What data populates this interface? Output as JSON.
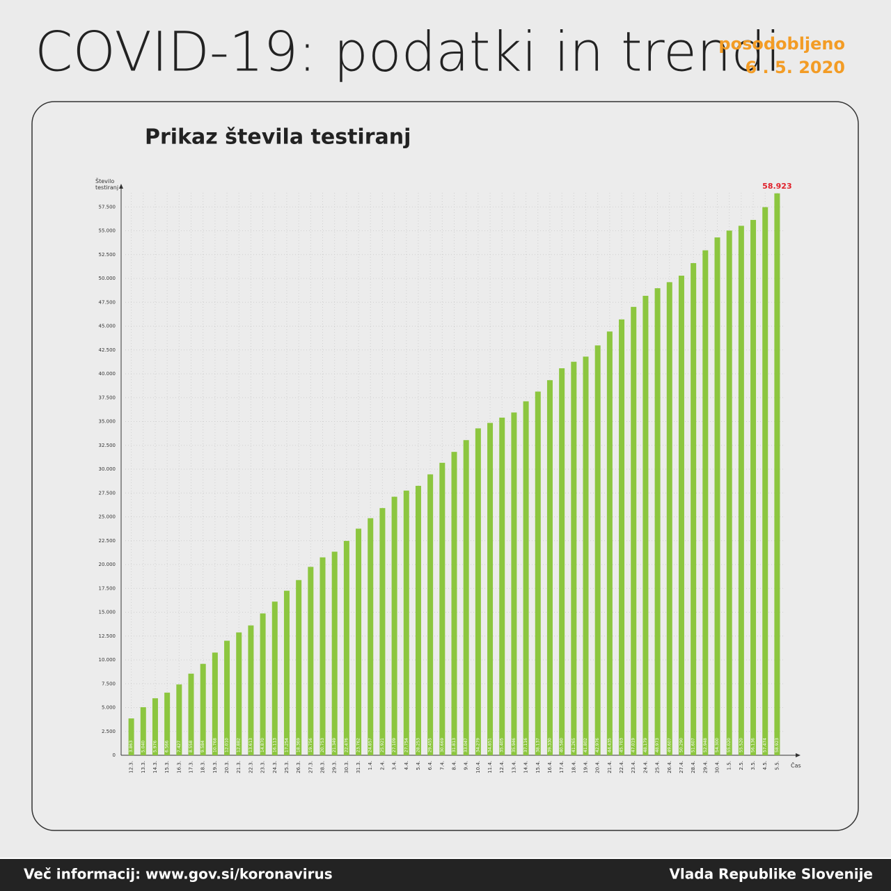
{
  "header": {
    "title": "COVID-19: podatki in trendi",
    "updated_label": "posodobljeno",
    "updated_date": "6 . 5. 2020"
  },
  "chart_data": {
    "type": "bar",
    "title": "Prikaz števila testiranj",
    "y_label": "Število testiranj",
    "x_label": "Čas",
    "color": "#8cc63f",
    "grid": true,
    "categories": [
      "12.3.",
      "13.3.",
      "14.3.",
      "15.3.",
      "16.3.",
      "17.3.",
      "18.3.",
      "19.3.",
      "20.3.",
      "21.3.",
      "22.3.",
      "23.3.",
      "24.3.",
      "25.3.",
      "26.3.",
      "27.3.",
      "28.3.",
      "29.3.",
      "30.3.",
      "31.3.",
      "1.4.",
      "2.4.",
      "3.4.",
      "4.4.",
      "5.4.",
      "6.4.",
      "7.4.",
      "8.4.",
      "9.4.",
      "10.4.",
      "11.4.",
      "12.4.",
      "13.4.",
      "14.4.",
      "15.4.",
      "16.4.",
      "17.4.",
      "18.4.",
      "19.4.",
      "20.4.",
      "21.4.",
      "22.4.",
      "23.4.",
      "24.4.",
      "25.4.",
      "26.4.",
      "27.4.",
      "28.4.",
      "29.4.",
      "30.4.",
      "1.5.",
      "2.5.",
      "3.5.",
      "4.5.",
      "5.5."
    ],
    "values": [
      3863,
      5040,
      5976,
      6566,
      7427,
      8558,
      9584,
      10768,
      12010,
      12882,
      13613,
      14870,
      16113,
      17254,
      18369,
      19756,
      20753,
      21349,
      22476,
      23762,
      24857,
      25921,
      27109,
      27754,
      28253,
      29455,
      30669,
      31813,
      33047,
      34279,
      34851,
      35405,
      35946,
      37116,
      38137,
      39330,
      40580,
      41265,
      41802,
      42976,
      44435,
      45703,
      47019,
      48179,
      48973,
      49607,
      50290,
      51607,
      52948,
      54300,
      55020,
      55520,
      56136,
      57474,
      58923
    ],
    "value_labels": [
      "3.863",
      "5.040",
      "5.976",
      "6.566",
      "7.427",
      "8.558",
      "9.584",
      "10.768",
      "12.010",
      "12.882",
      "13.613",
      "14.870",
      "16.113",
      "17.254",
      "18.369",
      "19.756",
      "20.753",
      "21.349",
      "22.476",
      "23.762",
      "24.857",
      "25.921",
      "27.109",
      "27.754",
      "28.253",
      "29.455",
      "30.669",
      "31.813",
      "33.047",
      "34.279",
      "34.851",
      "35.405",
      "35.946",
      "37.116",
      "38.137",
      "39.330",
      "40.580",
      "41.265",
      "41.802",
      "42.976",
      "44.435",
      "45.703",
      "47.019",
      "48.179",
      "48.973",
      "49.607",
      "50.290",
      "51.607",
      "52.948",
      "54.300",
      "55.020",
      "55.520",
      "56.136",
      "57.474",
      "58.923"
    ],
    "ylim": [
      0,
      60000
    ],
    "yticks": [
      0,
      {
        "value": 2500,
        "label": "2.500"
      },
      {
        "value": 5000,
        "label": "5.000"
      },
      {
        "value": 7500,
        "label": "7.500"
      },
      {
        "value": 10000,
        "label": "10.000"
      },
      {
        "value": 12500,
        "label": "12.500"
      },
      {
        "value": 15000,
        "label": "15.000"
      },
      {
        "value": 17500,
        "label": "17.500"
      },
      {
        "value": 20000,
        "label": "20.000"
      },
      {
        "value": 22500,
        "label": "22.500"
      },
      {
        "value": 25000,
        "label": "25.000"
      },
      {
        "value": 27500,
        "label": "27.500"
      },
      {
        "value": 30000,
        "label": "30.000"
      },
      {
        "value": 32500,
        "label": "32.500"
      },
      {
        "value": 35000,
        "label": "35.000"
      },
      {
        "value": 37500,
        "label": "37.500"
      },
      {
        "value": 40000,
        "label": "40.000"
      },
      {
        "value": 42500,
        "label": "42.500"
      },
      {
        "value": 45000,
        "label": "45.000"
      },
      {
        "value": 47500,
        "label": "47.500"
      },
      {
        "value": 50000,
        "label": "50.000"
      },
      {
        "value": 52500,
        "label": "52.500"
      },
      {
        "value": 55000,
        "label": "55.000"
      },
      {
        "value": 57500,
        "label": "57.500"
      }
    ]
  },
  "footer": {
    "info": "Več informacij: www.gov.si/koronavirus",
    "government": "Vlada Republike Slovenije"
  }
}
